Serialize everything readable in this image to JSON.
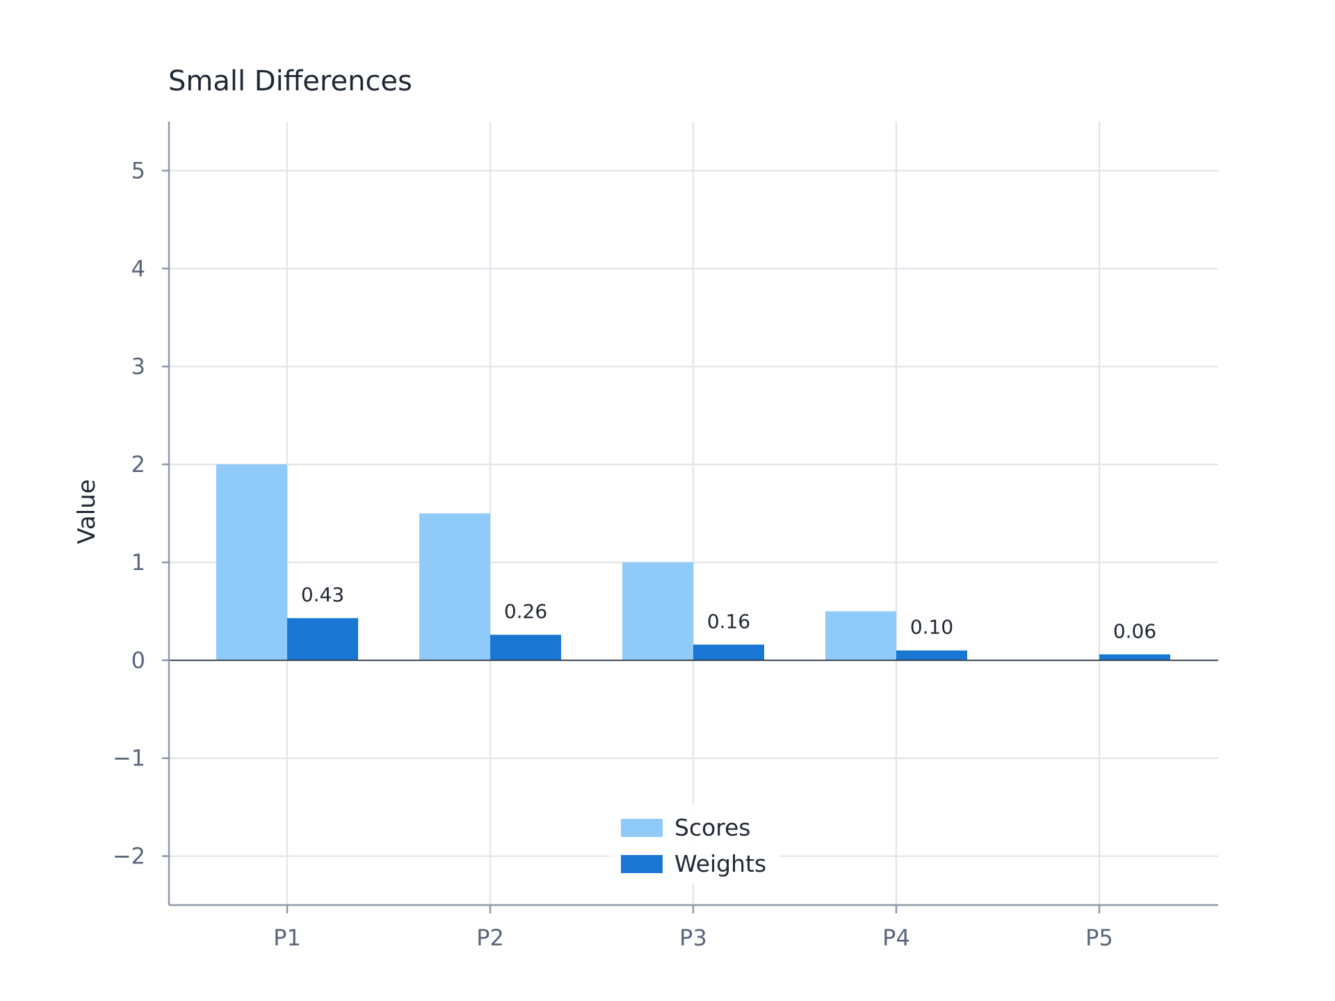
{
  "chart_data": {
    "type": "bar",
    "title": "Small Differences",
    "xlabel": "",
    "ylabel": "Value",
    "categories": [
      "P1",
      "P2",
      "P3",
      "P4",
      "P5"
    ],
    "series": [
      {
        "name": "Scores",
        "values": [
          2.0,
          1.5,
          1.0,
          0.5,
          0.0
        ],
        "color": "#90caf9",
        "show_labels": false
      },
      {
        "name": "Weights",
        "values": [
          0.43,
          0.26,
          0.16,
          0.1,
          0.06
        ],
        "color": "#1976d2",
        "show_labels": true,
        "labels": [
          "0.43",
          "0.26",
          "0.16",
          "0.10",
          "0.06"
        ]
      }
    ],
    "ylim": [
      -2.5,
      5.5
    ],
    "yticks": [
      -2,
      -1,
      0,
      1,
      2,
      3,
      4,
      5
    ],
    "ytick_labels": [
      "−2",
      "−1",
      "0",
      "1",
      "2",
      "3",
      "4",
      "5"
    ],
    "grid": true,
    "legend_position": "lower-center"
  },
  "colors": {
    "grid": "#e3e7ec",
    "axis": "#8e98a8",
    "zero_line": "#3d4654"
  }
}
